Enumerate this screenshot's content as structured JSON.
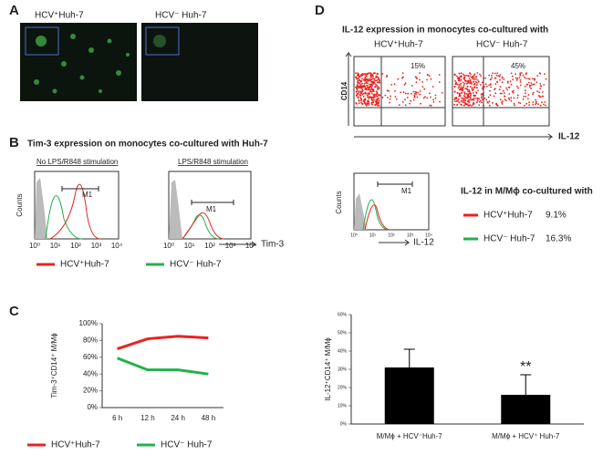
{
  "panel_a": {
    "label": "A",
    "left": "HCV⁺Huh-7",
    "right": "HCV⁻ Huh-7"
  },
  "panel_b": {
    "label": "B",
    "title": "Tim-3 expression on monocytes co-cultured with Huh-7",
    "left_title": "No LPS/R848 stimulation",
    "right_title": "LPS/R848 stimulation",
    "y_label": "Counts",
    "x_label": "Tim-3",
    "gate": "M1",
    "axis_ticks": [
      "10⁰",
      "10¹",
      "10²",
      "10³",
      "10⁴"
    ],
    "legend": [
      "HCV⁺Huh-7",
      "HCV⁻ Huh-7"
    ]
  },
  "panel_d": {
    "label": "D",
    "title": "IL-12 expression in monocytes co-cultured with",
    "left": "HCV⁺Huh-7",
    "right": "HCV⁻ Huh-7",
    "y_label": "CD14",
    "x_label": "IL-12",
    "left_pct": "15%",
    "right_pct": "45%",
    "hist_y_label": "Counts",
    "hist_x_label": "IL-12",
    "gate": "M1",
    "axis_ticks": [
      "10⁰",
      "10¹",
      "10²",
      "10³",
      "10⁴"
    ],
    "hist_title": "IL-12 in M/Mɸ co-cultured with",
    "legend": [
      {
        "name": "HCV⁺Huh-7",
        "pct": "9.1%"
      },
      {
        "name": "HCV⁻ Huh-7",
        "pct": "16.3%"
      }
    ]
  },
  "chart_data": [
    {
      "type": "line",
      "label": "C",
      "y_label": "Tim-3⁺CD14⁺ M/Mɸ",
      "categories": [
        "6 h",
        "12 h",
        "24 h",
        "48 h"
      ],
      "series": [
        {
          "name": "HCV⁺Huh-7",
          "color": "#e8231f",
          "values": [
            70,
            82,
            85,
            83
          ]
        },
        {
          "name": "HCV⁻ Huh-7",
          "color": "#22b14c",
          "values": [
            59,
            45,
            45,
            40
          ]
        }
      ],
      "ylim": [
        0,
        100
      ],
      "yticks": [
        {
          "value": 0,
          "label": "0%"
        },
        {
          "value": 20,
          "label": "20%"
        },
        {
          "value": 40,
          "label": "40%"
        },
        {
          "value": 60,
          "label": "60%"
        },
        {
          "value": 80,
          "label": "80%"
        },
        {
          "value": 100,
          "label": "100%"
        }
      ]
    },
    {
      "type": "bar",
      "y_label": "IL-12⁺CD14⁺ M/Mɸ",
      "categories": [
        "M/Mɸ + HCV⁻Huh-7",
        "M/Mɸ + HCV⁺ Huh-7"
      ],
      "values": [
        31,
        16
      ],
      "errors": [
        10,
        11
      ],
      "color": "#000000",
      "annotations": [
        null,
        "**"
      ],
      "ylim": [
        0,
        60
      ],
      "yticks": [
        {
          "value": 0,
          "label": "0%"
        },
        {
          "value": 10,
          "label": "10%"
        },
        {
          "value": 20,
          "label": "20%"
        },
        {
          "value": 30,
          "label": "30%"
        },
        {
          "value": 40,
          "label": "40%"
        },
        {
          "value": 50,
          "label": "50%"
        },
        {
          "value": 60,
          "label": "60%"
        }
      ]
    }
  ]
}
